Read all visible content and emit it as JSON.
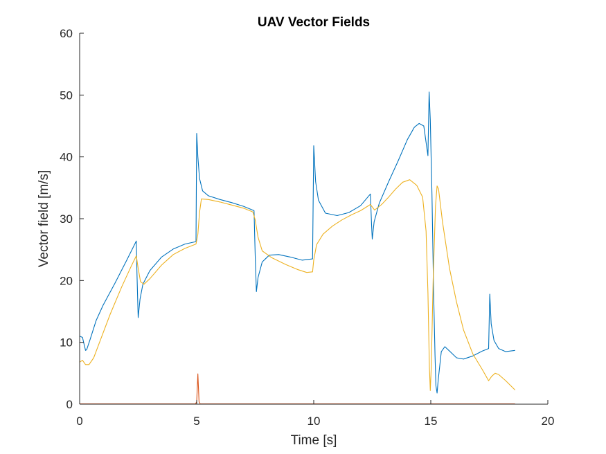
{
  "chart_data": {
    "type": "line",
    "title": "UAV Vector Fields",
    "xlabel": "Time [s]",
    "ylabel": "Vector field [m/s]",
    "xlim": [
      0,
      20
    ],
    "ylim": [
      0,
      60
    ],
    "xticks": [
      0,
      5,
      10,
      15,
      20
    ],
    "yticks": [
      0,
      10,
      20,
      30,
      40,
      50,
      60
    ],
    "xtick_labels": [
      "0",
      "5",
      "10",
      "15",
      "20"
    ],
    "ytick_labels": [
      "0",
      "10",
      "20",
      "30",
      "40",
      "50",
      "60"
    ],
    "grid": false,
    "legend": false,
    "series": [
      {
        "name": "series-1",
        "color": "#0072BD",
        "points": [
          [
            0,
            11
          ],
          [
            0.12,
            10.8
          ],
          [
            0.2,
            9.5
          ],
          [
            0.25,
            8.7
          ],
          [
            0.3,
            8.8
          ],
          [
            0.45,
            10.5
          ],
          [
            0.7,
            13.5
          ],
          [
            1.0,
            16
          ],
          [
            1.5,
            19.5
          ],
          [
            2.0,
            23.2
          ],
          [
            2.42,
            26.4
          ],
          [
            2.45,
            21
          ],
          [
            2.5,
            14
          ],
          [
            2.58,
            17
          ],
          [
            2.7,
            19.4
          ],
          [
            3.0,
            21.6
          ],
          [
            3.5,
            23.8
          ],
          [
            4.0,
            25.1
          ],
          [
            4.5,
            25.9
          ],
          [
            4.97,
            26.3
          ],
          [
            5.0,
            43.8
          ],
          [
            5.05,
            40
          ],
          [
            5.12,
            36.5
          ],
          [
            5.25,
            34.5
          ],
          [
            5.5,
            33.7
          ],
          [
            6.0,
            33.1
          ],
          [
            6.5,
            32.6
          ],
          [
            7.0,
            32
          ],
          [
            7.45,
            31.3
          ],
          [
            7.5,
            24
          ],
          [
            7.55,
            18.2
          ],
          [
            7.62,
            20.5
          ],
          [
            7.8,
            23
          ],
          [
            8.1,
            24.1
          ],
          [
            8.5,
            24.2
          ],
          [
            9.0,
            23.8
          ],
          [
            9.5,
            23.3
          ],
          [
            9.95,
            23.5
          ],
          [
            10.0,
            41.8
          ],
          [
            10.08,
            36
          ],
          [
            10.2,
            33
          ],
          [
            10.5,
            30.9
          ],
          [
            11.0,
            30.5
          ],
          [
            11.5,
            31
          ],
          [
            12.0,
            32.1
          ],
          [
            12.42,
            34
          ],
          [
            12.47,
            29
          ],
          [
            12.5,
            26.7
          ],
          [
            12.58,
            29.5
          ],
          [
            12.8,
            32.5
          ],
          [
            13.2,
            36
          ],
          [
            13.6,
            39.3
          ],
          [
            14.0,
            42.8
          ],
          [
            14.3,
            44.8
          ],
          [
            14.5,
            45.4
          ],
          [
            14.7,
            45
          ],
          [
            14.88,
            40.2
          ],
          [
            14.93,
            50.5
          ],
          [
            14.98,
            46
          ],
          [
            15.05,
            34
          ],
          [
            15.12,
            18
          ],
          [
            15.18,
            8
          ],
          [
            15.22,
            3
          ],
          [
            15.27,
            1.8
          ],
          [
            15.32,
            4
          ],
          [
            15.45,
            8.5
          ],
          [
            15.6,
            9.3
          ],
          [
            15.8,
            8.6
          ],
          [
            16.1,
            7.5
          ],
          [
            16.4,
            7.3
          ],
          [
            16.8,
            7.8
          ],
          [
            17.2,
            8.6
          ],
          [
            17.47,
            9
          ],
          [
            17.52,
            17.8
          ],
          [
            17.58,
            13
          ],
          [
            17.7,
            10.3
          ],
          [
            17.9,
            9
          ],
          [
            18.2,
            8.5
          ],
          [
            18.6,
            8.7
          ]
        ]
      },
      {
        "name": "series-2",
        "color": "#D95319",
        "points": [
          [
            0,
            0.05
          ],
          [
            4.95,
            0.05
          ],
          [
            5.0,
            0.4
          ],
          [
            5.05,
            4.9
          ],
          [
            5.1,
            0.4
          ],
          [
            5.15,
            0.05
          ],
          [
            18.6,
            0.05
          ]
        ]
      },
      {
        "name": "series-3",
        "color": "#EDB120",
        "points": [
          [
            0,
            6.8
          ],
          [
            0.12,
            7.1
          ],
          [
            0.25,
            6.4
          ],
          [
            0.4,
            6.4
          ],
          [
            0.6,
            7.5
          ],
          [
            0.9,
            10.5
          ],
          [
            1.3,
            14.5
          ],
          [
            1.8,
            19
          ],
          [
            2.2,
            22.3
          ],
          [
            2.42,
            24
          ],
          [
            2.5,
            22
          ],
          [
            2.6,
            19.8
          ],
          [
            2.75,
            19.4
          ],
          [
            3.0,
            20.3
          ],
          [
            3.5,
            22.5
          ],
          [
            4.0,
            24.2
          ],
          [
            4.5,
            25.2
          ],
          [
            4.97,
            25.9
          ],
          [
            5.05,
            27.5
          ],
          [
            5.12,
            31
          ],
          [
            5.2,
            33.2
          ],
          [
            5.5,
            33.1
          ],
          [
            6.0,
            32.7
          ],
          [
            6.5,
            32.2
          ],
          [
            7.0,
            31.7
          ],
          [
            7.4,
            31.1
          ],
          [
            7.5,
            29.8
          ],
          [
            7.62,
            27
          ],
          [
            7.8,
            24.8
          ],
          [
            8.2,
            23.7
          ],
          [
            8.8,
            22.6
          ],
          [
            9.3,
            21.8
          ],
          [
            9.7,
            21.3
          ],
          [
            9.95,
            21.4
          ],
          [
            10.0,
            23.3
          ],
          [
            10.12,
            25.8
          ],
          [
            10.4,
            27.5
          ],
          [
            10.8,
            28.8
          ],
          [
            11.2,
            29.8
          ],
          [
            11.6,
            30.6
          ],
          [
            12.0,
            31.3
          ],
          [
            12.42,
            32.3
          ],
          [
            12.6,
            31.4
          ],
          [
            12.9,
            32.3
          ],
          [
            13.2,
            33.5
          ],
          [
            13.5,
            34.8
          ],
          [
            13.8,
            35.9
          ],
          [
            14.1,
            36.3
          ],
          [
            14.4,
            35.4
          ],
          [
            14.65,
            33.5
          ],
          [
            14.8,
            28
          ],
          [
            14.88,
            18
          ],
          [
            14.94,
            6
          ],
          [
            14.98,
            2.2
          ],
          [
            15.02,
            6
          ],
          [
            15.1,
            20
          ],
          [
            15.2,
            32
          ],
          [
            15.27,
            35.3
          ],
          [
            15.33,
            34.8
          ],
          [
            15.5,
            29.5
          ],
          [
            15.8,
            22
          ],
          [
            16.1,
            16.5
          ],
          [
            16.4,
            12
          ],
          [
            16.8,
            8.1
          ],
          [
            17.2,
            5.6
          ],
          [
            17.47,
            3.8
          ],
          [
            17.6,
            4.5
          ],
          [
            17.75,
            5
          ],
          [
            17.9,
            4.8
          ],
          [
            18.2,
            3.8
          ],
          [
            18.6,
            2.3
          ]
        ]
      }
    ]
  }
}
